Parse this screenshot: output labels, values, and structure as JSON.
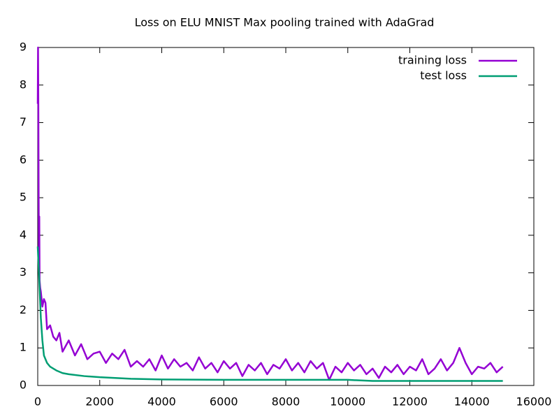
{
  "chart_data": {
    "type": "line",
    "title": "Loss on ELU MNIST Max pooling trained with AdaGrad",
    "xlim": [
      0,
      16000
    ],
    "xticks": [
      0,
      2000,
      4000,
      6000,
      8000,
      10000,
      12000,
      14000,
      16000
    ],
    "ylim": [
      0,
      9
    ],
    "yticks": [
      0,
      1,
      2,
      3,
      4,
      5,
      6,
      7,
      8,
      9
    ],
    "legend": "top-right",
    "series": [
      {
        "name": "training loss",
        "color": "#9400d3",
        "x": [
          0,
          10,
          20,
          30,
          40,
          50,
          60,
          80,
          100,
          150,
          200,
          250,
          300,
          400,
          500,
          600,
          700,
          800,
          1000,
          1200,
          1400,
          1600,
          1800,
          2000,
          2200,
          2400,
          2600,
          2800,
          3000,
          3200,
          3400,
          3600,
          3800,
          4000,
          4200,
          4400,
          4600,
          4800,
          5000,
          5200,
          5400,
          5600,
          5800,
          6000,
          6200,
          6400,
          6600,
          6800,
          7000,
          7200,
          7400,
          7600,
          7800,
          8000,
          8200,
          8400,
          8600,
          8800,
          9000,
          9200,
          9400,
          9600,
          9800,
          10000,
          10200,
          10400,
          10600,
          10800,
          11000,
          11200,
          11400,
          11600,
          11800,
          12000,
          12200,
          12400,
          12600,
          12800,
          13000,
          13200,
          13400,
          13600,
          13800,
          14000,
          14200,
          14400,
          14600,
          14800,
          15000
        ],
        "values": [
          7.5,
          9.0,
          7.4,
          5.0,
          3.5,
          4.5,
          2.8,
          2.6,
          2.5,
          2.1,
          2.3,
          2.2,
          1.5,
          1.6,
          1.3,
          1.2,
          1.4,
          0.9,
          1.2,
          0.8,
          1.1,
          0.7,
          0.85,
          0.9,
          0.6,
          0.85,
          0.7,
          0.95,
          0.5,
          0.65,
          0.5,
          0.7,
          0.4,
          0.8,
          0.45,
          0.7,
          0.5,
          0.6,
          0.4,
          0.75,
          0.45,
          0.6,
          0.35,
          0.65,
          0.45,
          0.6,
          0.25,
          0.55,
          0.4,
          0.6,
          0.3,
          0.55,
          0.45,
          0.7,
          0.4,
          0.6,
          0.35,
          0.65,
          0.45,
          0.6,
          0.15,
          0.5,
          0.35,
          0.6,
          0.4,
          0.55,
          0.3,
          0.45,
          0.2,
          0.5,
          0.35,
          0.55,
          0.3,
          0.5,
          0.4,
          0.7,
          0.3,
          0.45,
          0.7,
          0.4,
          0.6,
          1.0,
          0.6,
          0.3,
          0.5,
          0.45,
          0.6,
          0.35,
          0.5
        ]
      },
      {
        "name": "test loss",
        "color": "#009e73",
        "x": [
          0,
          50,
          100,
          150,
          200,
          300,
          400,
          600,
          800,
          1000,
          1500,
          2000,
          3000,
          4000,
          6000,
          8000,
          10000,
          10800,
          12000,
          15000
        ],
        "values": [
          3.7,
          2.8,
          1.8,
          1.2,
          0.8,
          0.6,
          0.5,
          0.4,
          0.33,
          0.3,
          0.25,
          0.22,
          0.18,
          0.16,
          0.15,
          0.15,
          0.15,
          0.12,
          0.12,
          0.12
        ]
      }
    ]
  }
}
